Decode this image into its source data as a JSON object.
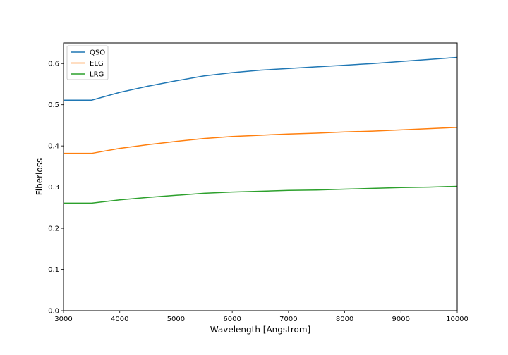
{
  "chart_data": {
    "type": "line",
    "xlabel": "Wavelength [Angstrom]",
    "ylabel": "Fiberloss",
    "xlim": [
      3000,
      10000
    ],
    "ylim": [
      0.0,
      0.65
    ],
    "xticks": [
      3000,
      4000,
      5000,
      6000,
      7000,
      8000,
      9000,
      10000
    ],
    "yticks": [
      0.0,
      0.1,
      0.2,
      0.3,
      0.4,
      0.5,
      0.6
    ],
    "grid": false,
    "legend_position": "top-left",
    "series": [
      {
        "name": "QSO",
        "color": "#1f77b4",
        "x": [
          3000,
          3500,
          4000,
          4500,
          5000,
          5500,
          6000,
          6500,
          7000,
          7500,
          8000,
          8500,
          9000,
          9500,
          10000
        ],
        "y": [
          0.511,
          0.511,
          0.53,
          0.545,
          0.558,
          0.57,
          0.578,
          0.584,
          0.588,
          0.592,
          0.596,
          0.6,
          0.605,
          0.61,
          0.615
        ]
      },
      {
        "name": "ELG",
        "color": "#ff7f0e",
        "x": [
          3000,
          3500,
          4000,
          4500,
          5000,
          5500,
          6000,
          6500,
          7000,
          7500,
          8000,
          8500,
          9000,
          9500,
          10000
        ],
        "y": [
          0.382,
          0.382,
          0.394,
          0.403,
          0.411,
          0.418,
          0.423,
          0.426,
          0.429,
          0.431,
          0.434,
          0.436,
          0.439,
          0.442,
          0.445
        ]
      },
      {
        "name": "LRG",
        "color": "#2ca02c",
        "x": [
          3000,
          3500,
          4000,
          4500,
          5000,
          5500,
          6000,
          6500,
          7000,
          7500,
          8000,
          8500,
          9000,
          9500,
          10000
        ],
        "y": [
          0.261,
          0.261,
          0.269,
          0.275,
          0.28,
          0.285,
          0.288,
          0.29,
          0.292,
          0.293,
          0.295,
          0.297,
          0.299,
          0.3,
          0.302
        ]
      }
    ]
  }
}
